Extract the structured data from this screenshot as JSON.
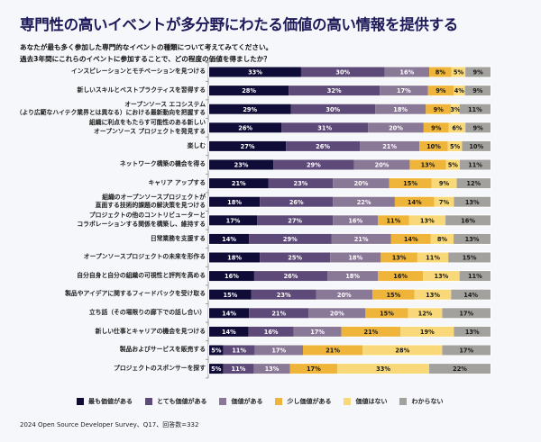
{
  "title": "専門性の高いイベントが多分野にわたる価値の高い情報を提供する",
  "subtitle_lines": [
    "あなたが最も多く参加した専門的なイベントの種類について考えてみてください。",
    "過去3年間にこれらのイベントに参加することで、どの程度の価値を得ましたか？"
  ],
  "source": "2024 Open Source Developer Survey、Q17、回答数=332",
  "chart_data": {
    "type": "bar",
    "orientation": "horizontal",
    "stacked": true,
    "normalized": true,
    "value_format": "percent",
    "title": "専門性の高いイベントが多分野にわたる価値の高い情報を提供する",
    "xlabel": "",
    "ylabel": "",
    "legend_position": "bottom",
    "grid": false,
    "categories": [
      "インスピレーションとモチベーションを見つける",
      "新しいスキルとベストプラクティスを習得する",
      "オープンソース エコシステム\n（より広範なハイテク業界とは異なる）における最新動向を把握する",
      "組織に利点をもたらす可能性のある新しい\nオープンソース プロジェクトを発見する",
      "楽しむ",
      "ネットワーク構築の機会を得る",
      "キャリア アップする",
      "組織のオープンソースプロジェクトが\n直面する技術的課題の解決策を見つける",
      "プロジェクトの他のコントリビューターと\nコラボレーションする関係を構築し、維持する",
      "日常業務を支援する",
      "オープンソースプロジェクトの未来を形作る",
      "自分自身と自分の組織の可視性と評判を高める",
      "製品やアイデアに関するフィードバックを受け取る",
      "立ち話（その場限りの廊下での話し合い）",
      "新しい仕事とキャリアの機会を見つける",
      "製品およびサービスを販売する",
      "プロジェクトのスポンサーを探す"
    ],
    "series": [
      {
        "name": "最も価値がある",
        "color": "#100c38",
        "text_color": "#ffffff",
        "values": [
          33,
          28,
          29,
          26,
          27,
          23,
          21,
          18,
          17,
          14,
          18,
          16,
          15,
          14,
          14,
          5,
          5
        ]
      },
      {
        "name": "とても価値がある",
        "color": "#5d4a78",
        "text_color": "#ffffff",
        "values": [
          30,
          32,
          30,
          31,
          26,
          29,
          23,
          26,
          27,
          29,
          25,
          26,
          23,
          21,
          16,
          11,
          11
        ]
      },
      {
        "name": "価値がある",
        "color": "#8a7897",
        "text_color": "#ffffff",
        "values": [
          16,
          17,
          18,
          20,
          21,
          20,
          20,
          22,
          16,
          21,
          18,
          18,
          20,
          20,
          17,
          17,
          13
        ]
      },
      {
        "name": "少し価値がある",
        "color": "#efb43a",
        "text_color": "#1a1a1a",
        "values": [
          8,
          9,
          9,
          9,
          10,
          13,
          15,
          14,
          11,
          14,
          13,
          16,
          15,
          15,
          21,
          21,
          17
        ]
      },
      {
        "name": "価値はない",
        "color": "#f8d878",
        "text_color": "#1a1a1a",
        "values": [
          5,
          4,
          3,
          6,
          5,
          5,
          9,
          7,
          13,
          8,
          11,
          13,
          13,
          12,
          19,
          28,
          33
        ]
      },
      {
        "name": "わからない",
        "color": "#a3a19d",
        "text_color": "#1a1a1a",
        "values": [
          9,
          9,
          11,
          9,
          10,
          11,
          12,
          13,
          16,
          13,
          15,
          11,
          14,
          17,
          13,
          17,
          22
        ]
      }
    ]
  }
}
